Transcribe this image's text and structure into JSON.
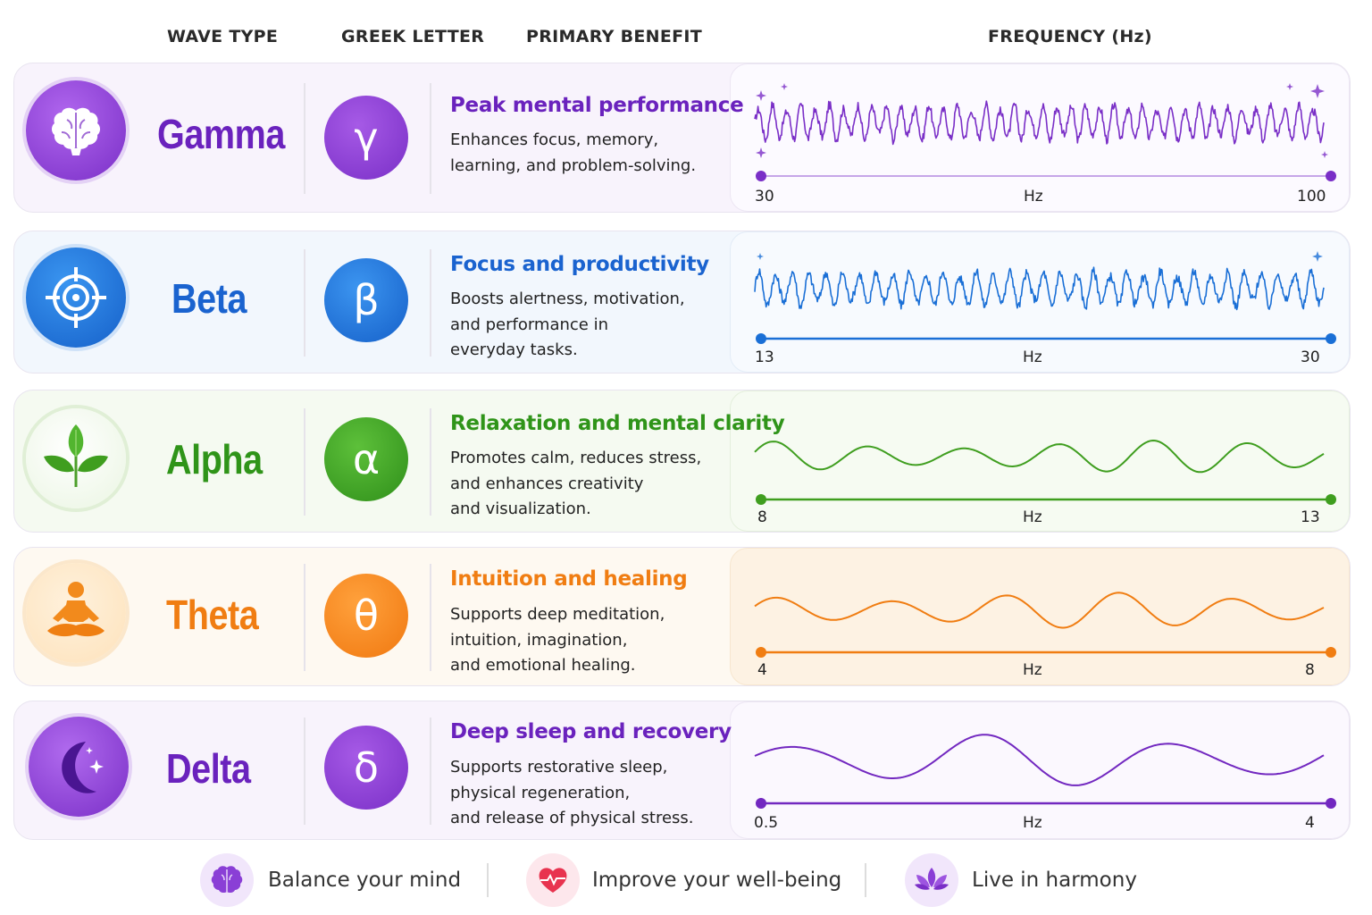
{
  "headers": {
    "wave_type": "WAVE TYPE",
    "greek_letter": "GREEK LETTER",
    "primary_benefit": "PRIMARY BENEFIT",
    "frequency": "FREQUENCY (Hz)"
  },
  "waves": [
    {
      "name": "Gamma",
      "letter": "γ",
      "icon": "brain-icon",
      "color": "#7a2fc7",
      "benefit_title": "Peak mental performance",
      "benefit_desc": "Enhances focus, memory,\nlearning, and problem-solving.",
      "freq_min": "30",
      "freq_unit": "Hz",
      "freq_max": "100"
    },
    {
      "name": "Beta",
      "letter": "β",
      "icon": "target-icon",
      "color": "#1a6fd6",
      "benefit_title": "Focus and productivity",
      "benefit_desc": "Boosts alertness, motivation,\nand performance in\neveryday tasks.",
      "freq_min": "13",
      "freq_unit": "Hz",
      "freq_max": "30"
    },
    {
      "name": "Alpha",
      "letter": "α",
      "icon": "leaf-icon",
      "color": "#3f9e1f",
      "benefit_title": "Relaxation and mental clarity",
      "benefit_desc": "Promotes calm, reduces stress,\nand enhances creativity\nand visualization.",
      "freq_min": "8",
      "freq_unit": "Hz",
      "freq_max": "13"
    },
    {
      "name": "Theta",
      "letter": "θ",
      "icon": "meditation-icon",
      "color": "#f07d12",
      "benefit_title": "Intuition and healing",
      "benefit_desc": "Supports deep meditation,\nintuition, imagination,\nand emotional healing.",
      "freq_min": "4",
      "freq_unit": "Hz",
      "freq_max": "8"
    },
    {
      "name": "Delta",
      "letter": "δ",
      "icon": "moon-icon",
      "color": "#7228c0",
      "benefit_title": "Deep sleep and recovery",
      "benefit_desc": "Supports restorative sleep,\nphysical regeneration,\nand release of physical stress.",
      "freq_min": "0.5",
      "freq_unit": "Hz",
      "freq_max": "4"
    }
  ],
  "footer": [
    {
      "label": "Balance your mind",
      "icon": "brain-icon"
    },
    {
      "label": "Improve your well-being",
      "icon": "heartbeat-icon"
    },
    {
      "label": "Live in harmony",
      "icon": "lotus-icon"
    }
  ]
}
